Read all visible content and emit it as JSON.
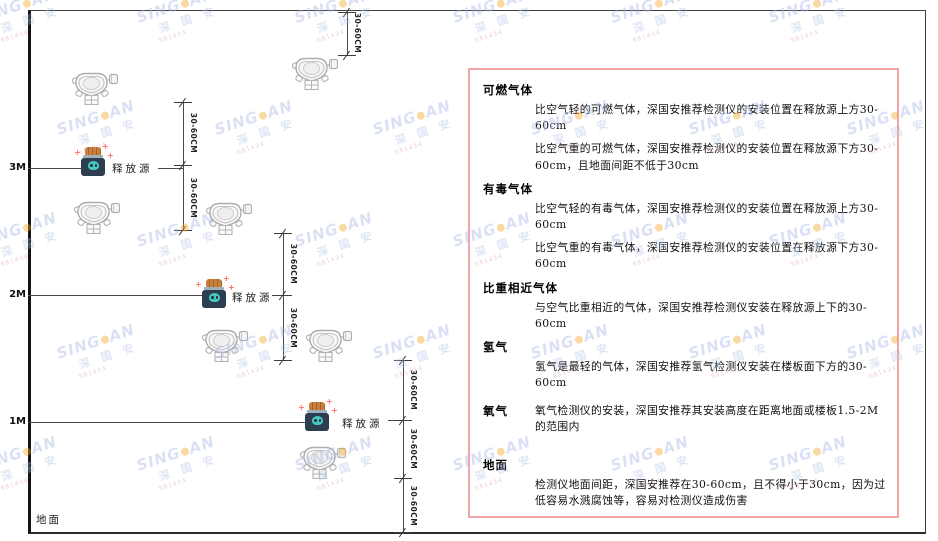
{
  "diagram": {
    "heights": {
      "h3": "3M",
      "h2": "2M",
      "h1": "1M"
    },
    "ground_label": "地面",
    "release_source_label": "释放源",
    "dimension_label": "30-60CM"
  },
  "panel": {
    "sections": [
      {
        "heading": "可燃气体",
        "p1": "比空气轻的可燃气体，深国安推荐检测仪的安装位置在释放源上方30-60cm",
        "p2": "比空气重的可燃气体，深国安推荐检测仪的安装位置在释放源下方30-60cm，且地面间距不低于30cm"
      },
      {
        "heading": "有毒气体",
        "p1": "比空气轻的有毒气体，深国安推荐检测仪的安装位置在释放源上方30-60cm",
        "p2": "比空气重的有毒气体，深国安推荐检测仪的安装位置在释放源下方30-60cm"
      },
      {
        "heading": "比重相近气体",
        "p1": "与空气比重相近的气体，深国安推荐检测仪安装在释放源上下的30-60cm"
      },
      {
        "heading": "氢气",
        "p1": "氢气是最轻的气体，深国安推荐氢气检测仪安装在楼板面下方的30-60cm"
      },
      {
        "heading": "氧气",
        "p1": "氧气检测仪的安装，深国安推荐其安装高度在距离地面或楼板1.5-2M的范围内"
      },
      {
        "heading": "地面",
        "p1": "检测仪地面间距，深国安推荐在30-60cm，且不得小于30cm，因为过低容易水溅腐蚀等，容易对检测仪造成伤害"
      }
    ]
  },
  "watermark": {
    "brand_left": "SING",
    "brand_right": "AN",
    "cn": "深 国 安",
    "code": "681434"
  },
  "colors": {
    "panel_border": "#F2A5A5",
    "release_body": "#2C3E50",
    "release_cap": "#C8803A",
    "release_face": "#45C8C0",
    "sparkle": "#FF6B6B",
    "watermark_blue": "#A9B9E6",
    "watermark_dot": "#F5A623",
    "line": "#3C3C3C"
  }
}
